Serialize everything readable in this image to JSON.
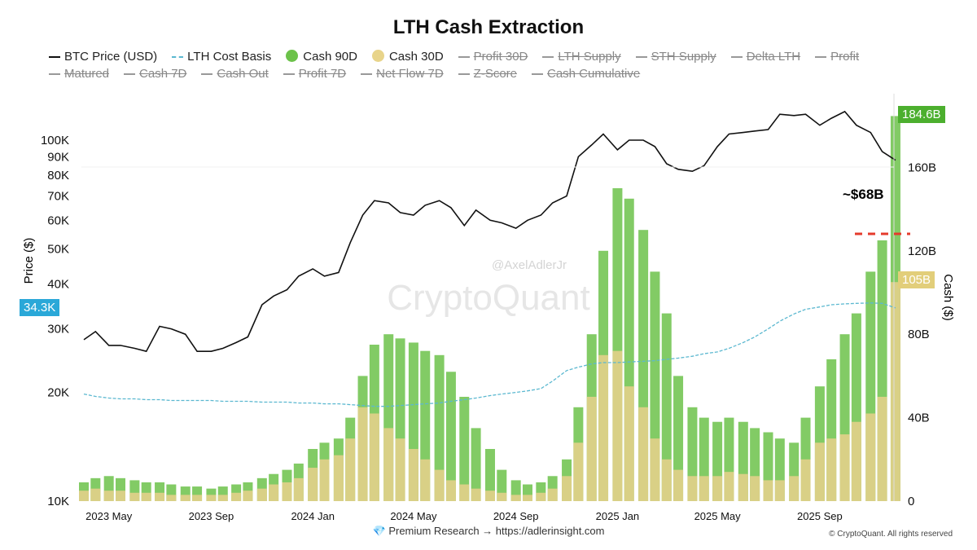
{
  "title": "LTH Cash Extraction",
  "legend": [
    {
      "label": "BTC Price (USD)",
      "style": "line",
      "active": true
    },
    {
      "label": "LTH Cost Basis",
      "style": "dash",
      "active": true
    },
    {
      "label": "Cash 90D",
      "style": "dot",
      "color": "#6cc24a",
      "active": true
    },
    {
      "label": "Cash 30D",
      "style": "dot",
      "color": "#e8d48a",
      "active": true
    },
    {
      "label": "Profit 30D",
      "active": false
    },
    {
      "label": "LTH Supply",
      "active": false
    },
    {
      "label": "STH Supply",
      "active": false
    },
    {
      "label": "Delta LTH",
      "active": false
    },
    {
      "label": "Profit",
      "active": false
    },
    {
      "label": "Matured",
      "active": false
    },
    {
      "label": "Cash 7D",
      "active": false
    },
    {
      "label": "Cash Out",
      "active": false
    },
    {
      "label": "Profit 7D",
      "active": false
    },
    {
      "label": "Net Flow 7D",
      "active": false
    },
    {
      "label": "Z-Score",
      "active": false
    },
    {
      "label": "Cash Cumulative",
      "active": false
    }
  ],
  "watermark": {
    "brand": "CryptoQuant",
    "handle": "@AxelAdlerJr"
  },
  "footer": {
    "text": "💎 Premium Research → ",
    "link": "https://adlerinsight.com",
    "copyright": "© CryptoQuant. All rights reserved"
  },
  "chart_data": {
    "type": "bar+line",
    "title": "LTH Cash Extraction",
    "ylabel_left": "Price ($)",
    "ylabel_right": "Cash ($)",
    "left_scale": "log",
    "left_ylim": [
      10000,
      140000
    ],
    "right_ylim": [
      0,
      195
    ],
    "left_ticks": [
      "10K",
      "20K",
      "30K",
      "40K",
      "50K",
      "60K",
      "70K",
      "80K",
      "90K",
      "100K"
    ],
    "left_tick_values": [
      10000,
      20000,
      30000,
      40000,
      50000,
      60000,
      70000,
      80000,
      90000,
      100000
    ],
    "right_ticks": [
      "0",
      "40B",
      "80B",
      "120B",
      "160B"
    ],
    "right_tick_values": [
      0,
      40,
      80,
      120,
      160
    ],
    "x_ticks": [
      "2023 May",
      "2023 Sep",
      "2024 Jan",
      "2024 May",
      "2024 Sep",
      "2025 Jan",
      "2025 May",
      "2025 Sep"
    ],
    "x_tick_dates": [
      "2023-05-01",
      "2023-09-01",
      "2024-01-01",
      "2024-05-01",
      "2024-09-01",
      "2025-01-01",
      "2025-05-01",
      "2025-09-01"
    ],
    "colors": {
      "price": "#111111",
      "cost_basis": "#5bb8d0",
      "cash90": "#6cc24a",
      "cash30": "#e2d08a",
      "annotation_line": "#e53b2c",
      "price_badge": "#2aa8d8"
    },
    "dates": [
      "2023-04-01",
      "2023-04-15",
      "2023-05-01",
      "2023-05-15",
      "2023-06-01",
      "2023-06-15",
      "2023-07-01",
      "2023-07-15",
      "2023-08-01",
      "2023-08-15",
      "2023-09-01",
      "2023-09-15",
      "2023-10-01",
      "2023-10-15",
      "2023-11-01",
      "2023-11-15",
      "2023-12-01",
      "2023-12-15",
      "2024-01-01",
      "2024-01-15",
      "2024-02-01",
      "2024-02-15",
      "2024-03-01",
      "2024-03-15",
      "2024-04-01",
      "2024-04-15",
      "2024-05-01",
      "2024-05-15",
      "2024-06-01",
      "2024-06-15",
      "2024-07-01",
      "2024-07-15",
      "2024-08-01",
      "2024-08-15",
      "2024-09-01",
      "2024-09-15",
      "2024-10-01",
      "2024-10-15",
      "2024-11-01",
      "2024-11-15",
      "2024-12-01",
      "2024-12-15",
      "2025-01-01",
      "2025-01-15",
      "2025-02-01",
      "2025-02-15",
      "2025-03-01",
      "2025-03-15",
      "2025-04-01",
      "2025-04-15",
      "2025-05-01",
      "2025-05-15",
      "2025-06-01",
      "2025-06-15",
      "2025-07-01",
      "2025-07-15",
      "2025-08-01",
      "2025-08-15",
      "2025-09-01",
      "2025-09-15",
      "2025-10-01",
      "2025-10-15",
      "2025-11-01",
      "2025-11-15",
      "2025-12-01"
    ],
    "series": [
      {
        "name": "BTC Price (USD)",
        "axis": "left",
        "values": [
          28000,
          29500,
          27000,
          27000,
          26500,
          26000,
          30500,
          30000,
          29000,
          26000,
          26000,
          26500,
          27500,
          28500,
          35000,
          37000,
          38500,
          42000,
          44000,
          42000,
          43000,
          52000,
          62000,
          68000,
          67000,
          63000,
          62000,
          66000,
          68000,
          65000,
          58000,
          64000,
          60000,
          59000,
          57000,
          60000,
          62000,
          67000,
          70000,
          90000,
          97000,
          104000,
          94000,
          100000,
          100000,
          96000,
          86000,
          83000,
          82000,
          85000,
          96000,
          104000,
          105000,
          106000,
          107000,
          118000,
          117000,
          118000,
          110000,
          115000,
          120000,
          110000,
          105000,
          93000,
          88000
        ]
      },
      {
        "name": "LTH Cost Basis",
        "axis": "left",
        "values": [
          19800,
          19500,
          19300,
          19200,
          19200,
          19100,
          19100,
          19000,
          19000,
          19000,
          19000,
          18900,
          18900,
          18900,
          18800,
          18800,
          18800,
          18700,
          18700,
          18600,
          18600,
          18500,
          18400,
          18300,
          18300,
          18400,
          18500,
          18600,
          18700,
          18900,
          19100,
          19300,
          19600,
          19800,
          20000,
          20200,
          20500,
          21500,
          23000,
          23500,
          24000,
          24200,
          24200,
          24300,
          24400,
          24500,
          24700,
          24900,
          25200,
          25600,
          25900,
          26500,
          27500,
          28500,
          30000,
          31500,
          33000,
          34000,
          34500,
          35000,
          35200,
          35300,
          35400,
          35300,
          34300
        ]
      },
      {
        "name": "Cash 90D",
        "axis": "right",
        "unit": "B",
        "values": [
          9,
          11,
          12,
          11,
          10,
          9,
          9,
          8,
          7,
          7,
          6,
          7,
          8,
          9,
          11,
          13,
          15,
          18,
          25,
          28,
          30,
          40,
          60,
          75,
          80,
          78,
          76,
          72,
          70,
          62,
          50,
          35,
          25,
          15,
          10,
          8,
          9,
          12,
          20,
          45,
          80,
          120,
          150,
          145,
          130,
          110,
          90,
          60,
          45,
          40,
          38,
          40,
          38,
          35,
          33,
          30,
          28,
          40,
          55,
          68,
          80,
          90,
          110,
          125,
          184.6
        ]
      },
      {
        "name": "Cash 30D",
        "axis": "right",
        "unit": "B",
        "values": [
          5,
          6,
          5,
          5,
          4,
          4,
          4,
          3,
          3,
          3,
          3,
          3,
          4,
          5,
          6,
          8,
          9,
          11,
          16,
          20,
          22,
          30,
          45,
          42,
          35,
          30,
          25,
          20,
          15,
          10,
          8,
          6,
          5,
          4,
          3,
          3,
          4,
          6,
          12,
          28,
          50,
          70,
          72,
          55,
          45,
          30,
          20,
          15,
          12,
          12,
          12,
          14,
          13,
          12,
          10,
          10,
          12,
          20,
          28,
          30,
          32,
          38,
          42,
          50,
          105
        ]
      }
    ],
    "badges": {
      "cash90_last": "184.6B",
      "cash30_last": "105B",
      "cost_basis_last": "34.3K"
    },
    "annotations": [
      {
        "text": "~$68B",
        "level_b": 130
      }
    ]
  }
}
